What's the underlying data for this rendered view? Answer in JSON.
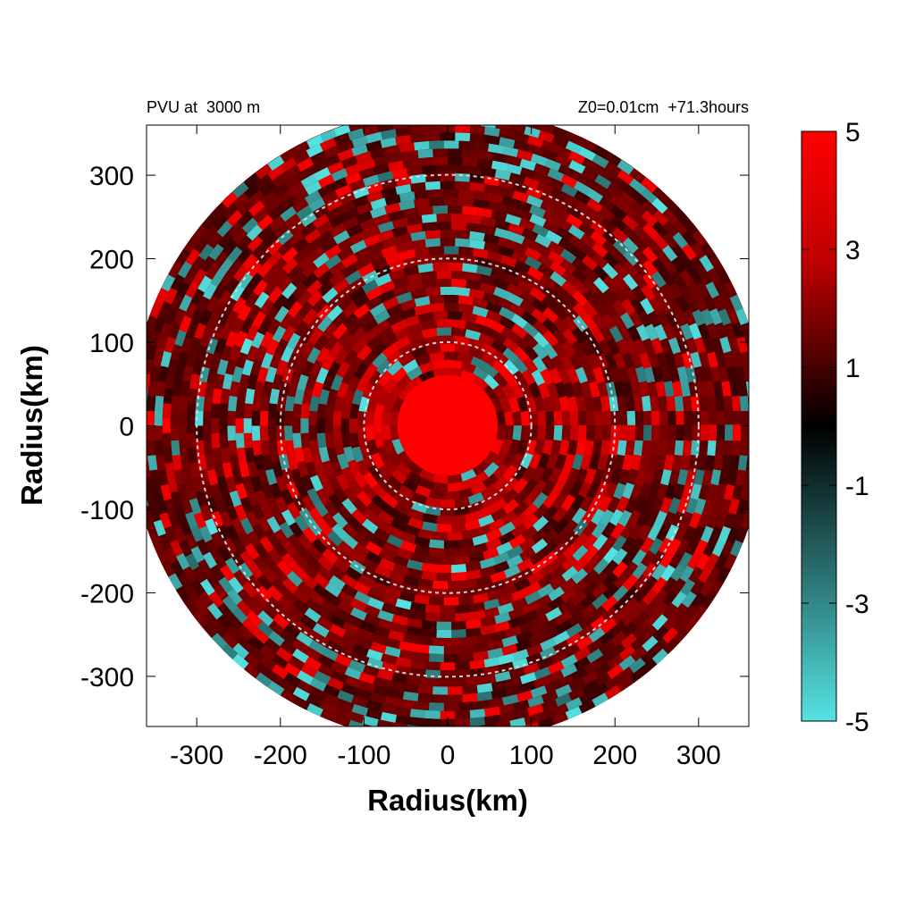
{
  "chart_data": {
    "type": "heatmap",
    "title_left": "PVU at  3000 m",
    "title_right": "Z0=0.01cm  +71.3hours",
    "xlabel": "Radius(km)",
    "ylabel": "Radius(km)",
    "xlim": [
      -360,
      360
    ],
    "ylim": [
      -360,
      360
    ],
    "x_ticks": [
      -300,
      -200,
      -100,
      0,
      100,
      200,
      300
    ],
    "y_ticks": [
      300,
      200,
      100,
      0,
      -100,
      -200,
      -300
    ],
    "colorbar": {
      "range": [
        -5,
        5
      ],
      "ticks": [
        5,
        3,
        1,
        -1,
        -3,
        -5
      ],
      "colors": {
        "max": "#ff0000",
        "mid": "#000000",
        "min": "#55e3e3"
      }
    },
    "reference_circles_km": [
      100,
      200,
      300
    ],
    "domain_radius_km": 380,
    "core": {
      "radius_km": 60,
      "value": 5
    },
    "description_note": ""
  }
}
